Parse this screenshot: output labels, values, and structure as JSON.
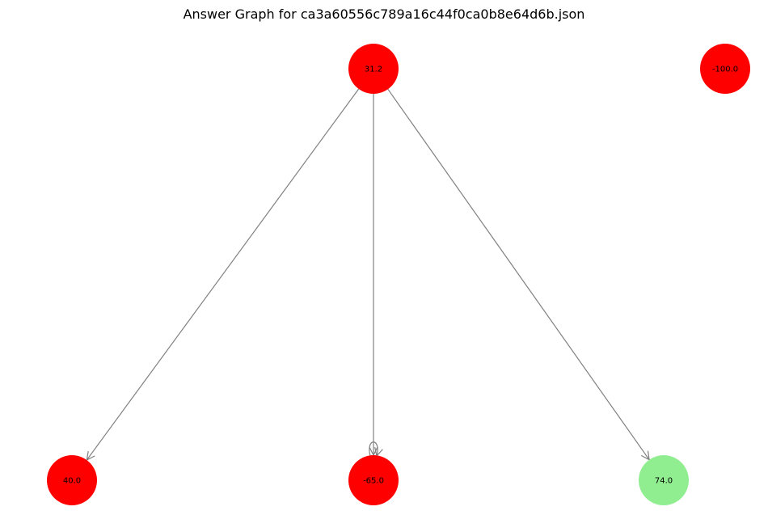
{
  "graph": {
    "title": "Answer Graph for ca3a60556c789a16c44f0ca0b8e64d6b.json",
    "nodes": [
      {
        "id": "n_top",
        "label": "31.2",
        "color": "#ff0000"
      },
      {
        "id": "n_iso",
        "label": "-100.0",
        "color": "#ff0000"
      },
      {
        "id": "n_left",
        "label": "40.0",
        "color": "#ff0000"
      },
      {
        "id": "n_mid",
        "label": "-65.0",
        "color": "#ff0000"
      },
      {
        "id": "n_right",
        "label": "74.0",
        "color": "#90ee90"
      }
    ],
    "edges": [
      {
        "from": "n_top",
        "to": "n_left"
      },
      {
        "from": "n_top",
        "to": "n_mid"
      },
      {
        "from": "n_top",
        "to": "n_right"
      },
      {
        "from": "n_mid",
        "to": "n_mid"
      }
    ],
    "edge_color": "#808080"
  }
}
